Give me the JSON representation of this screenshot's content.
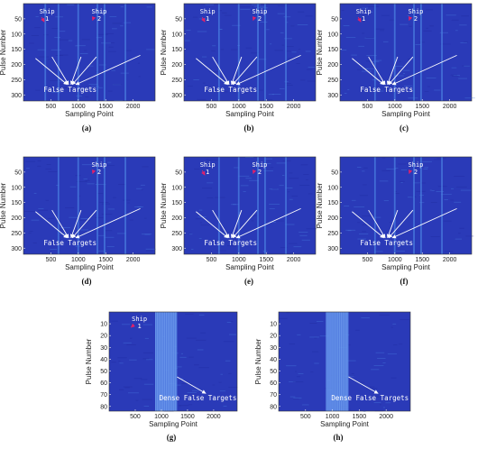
{
  "chart_data": [
    {
      "id": "a",
      "type": "heatmap",
      "caption": "(a)",
      "xlabel": "Sampling Point",
      "ylabel": "Pulse Number",
      "xlim": [
        0,
        2400
      ],
      "ylim": [
        0,
        320
      ],
      "xticks": [
        500,
        1000,
        1500,
        2000
      ],
      "yticks": [
        50,
        100,
        150,
        200,
        250,
        300
      ],
      "ships": [
        {
          "line1": "Ship",
          "line2": "1",
          "x": 430,
          "y": 18,
          "tx": 380,
          "ty": 60
        },
        {
          "line1": "Ship",
          "line2": "2",
          "x": 1380,
          "y": 18,
          "tx": 1260,
          "ty": 55
        }
      ],
      "false_label": "False Targets",
      "false_at": [
        850,
        290
      ],
      "false_from": [
        [
          220,
          180
        ],
        [
          520,
          175
        ],
        [
          1050,
          175
        ],
        [
          1330,
          175
        ],
        [
          2130,
          170
        ]
      ],
      "stripes": [
        400,
        640,
        1000,
        1350,
        1480,
        1860
      ]
    },
    {
      "id": "b",
      "type": "heatmap",
      "caption": "(b)",
      "xlabel": "Sampling Point",
      "ylabel": "Pulse Number",
      "xlim": [
        0,
        2400
      ],
      "ylim": [
        0,
        320
      ],
      "xticks": [
        500,
        1000,
        1500,
        2000
      ],
      "yticks": [
        50,
        100,
        150,
        200,
        250,
        300
      ],
      "ships": [
        {
          "line1": "Ship",
          "line2": "1",
          "x": 430,
          "y": 18,
          "tx": 380,
          "ty": 60
        },
        {
          "line1": "Ship",
          "line2": "2",
          "x": 1380,
          "y": 18,
          "tx": 1260,
          "ty": 55
        }
      ],
      "false_label": "False Targets",
      "false_at": [
        850,
        290
      ],
      "false_from": [
        [
          220,
          180
        ],
        [
          520,
          175
        ],
        [
          1050,
          175
        ],
        [
          1330,
          175
        ],
        [
          2130,
          170
        ]
      ],
      "stripes": [
        640,
        1000,
        1350,
        1480,
        1860
      ]
    },
    {
      "id": "c",
      "type": "heatmap",
      "caption": "(c)",
      "xlabel": "Sampling Point",
      "ylabel": "Pulse Number",
      "xlim": [
        0,
        2400
      ],
      "ylim": [
        0,
        320
      ],
      "xticks": [
        500,
        1000,
        1500,
        2000
      ],
      "yticks": [
        50,
        100,
        150,
        200,
        250,
        300
      ],
      "ships": [
        {
          "line1": "Ship",
          "line2": "1",
          "x": 430,
          "y": 18,
          "tx": 380,
          "ty": 60
        },
        {
          "line1": "Ship",
          "line2": "2",
          "x": 1380,
          "y": 18,
          "tx": 1260,
          "ty": 55
        }
      ],
      "false_label": "False Targets",
      "false_at": [
        850,
        290
      ],
      "false_from": [
        [
          220,
          180
        ],
        [
          520,
          175
        ],
        [
          1050,
          175
        ],
        [
          1330,
          175
        ],
        [
          2130,
          170
        ]
      ],
      "stripes": [
        640,
        1000,
        1350,
        1480,
        1860
      ]
    },
    {
      "id": "d",
      "type": "heatmap",
      "caption": "(d)",
      "xlabel": "Sampling Point",
      "ylabel": "Pulse Number",
      "xlim": [
        0,
        2400
      ],
      "ylim": [
        0,
        320
      ],
      "xticks": [
        500,
        1000,
        1500,
        2000
      ],
      "yticks": [
        50,
        100,
        150,
        200,
        250,
        300
      ],
      "ships": [
        {
          "line1": "Ship",
          "line2": "2",
          "x": 1380,
          "y": 18,
          "tx": 1260,
          "ty": 55
        }
      ],
      "false_label": "False Targets",
      "false_at": [
        850,
        290
      ],
      "false_from": [
        [
          220,
          180
        ],
        [
          520,
          175
        ],
        [
          1050,
          175
        ],
        [
          1330,
          175
        ],
        [
          2130,
          170
        ]
      ],
      "stripes": [
        640,
        1000,
        1350,
        1480,
        1860
      ]
    },
    {
      "id": "e",
      "type": "heatmap",
      "caption": "(e)",
      "xlabel": "Sampling Point",
      "ylabel": "Pulse Number",
      "xlim": [
        0,
        2400
      ],
      "ylim": [
        0,
        320
      ],
      "xticks": [
        500,
        1000,
        1500,
        2000
      ],
      "yticks": [
        50,
        100,
        150,
        200,
        250,
        300
      ],
      "ships": [
        {
          "line1": "Ship",
          "line2": "1",
          "x": 430,
          "y": 18,
          "tx": 380,
          "ty": 60
        },
        {
          "line1": "Ship",
          "line2": "2",
          "x": 1380,
          "y": 18,
          "tx": 1260,
          "ty": 55
        }
      ],
      "false_label": "False Targets",
      "false_at": [
        850,
        290
      ],
      "false_from": [
        [
          220,
          180
        ],
        [
          520,
          175
        ],
        [
          1050,
          175
        ],
        [
          1330,
          175
        ],
        [
          2130,
          170
        ]
      ],
      "stripes": [
        640,
        1000,
        1350,
        1480,
        1860
      ]
    },
    {
      "id": "f",
      "type": "heatmap",
      "caption": "(f)",
      "xlabel": "Sampling Point",
      "ylabel": "Pulse Number",
      "xlim": [
        0,
        2400
      ],
      "ylim": [
        0,
        320
      ],
      "xticks": [
        500,
        1000,
        1500,
        2000
      ],
      "yticks": [
        50,
        100,
        150,
        200,
        250,
        300
      ],
      "ships": [
        {
          "line1": "Ship",
          "line2": "2",
          "x": 1380,
          "y": 18,
          "tx": 1260,
          "ty": 55
        }
      ],
      "false_label": "False Targets",
      "false_at": [
        850,
        290
      ],
      "false_from": [
        [
          220,
          180
        ],
        [
          520,
          175
        ],
        [
          1050,
          175
        ],
        [
          1330,
          175
        ],
        [
          2130,
          170
        ]
      ],
      "stripes": [
        640,
        1000,
        1350,
        1480,
        1860
      ]
    },
    {
      "id": "g",
      "type": "heatmap",
      "caption": "(g)",
      "xlabel": "Sampling Point",
      "ylabel": "Pulse Number",
      "xlim": [
        0,
        2450
      ],
      "ylim": [
        0,
        84
      ],
      "xticks": [
        500,
        1000,
        1500,
        2000
      ],
      "yticks": [
        10,
        20,
        30,
        40,
        50,
        60,
        70,
        80
      ],
      "ships": [
        {
          "line1": "Ship",
          "line2": "1",
          "x": 580,
          "y": 4,
          "tx": 420,
          "ty": 13
        }
      ],
      "dense_label": "Dense False Targets",
      "dense_at": [
        1700,
        75
      ],
      "dense_from": [
        1300,
        55
      ],
      "dense_to": [
        1850,
        69
      ],
      "band": [
        880,
        1300
      ]
    },
    {
      "id": "h",
      "type": "heatmap",
      "caption": "(h)",
      "xlabel": "Sampling Point",
      "ylabel": "Pulse Number",
      "xlim": [
        0,
        2450
      ],
      "ylim": [
        0,
        84
      ],
      "xticks": [
        500,
        1000,
        1500,
        2000
      ],
      "yticks": [
        10,
        20,
        30,
        40,
        50,
        60,
        70,
        80
      ],
      "ships": [],
      "dense_label": "Dense False Targets",
      "dense_at": [
        1700,
        75
      ],
      "dense_from": [
        1300,
        55
      ],
      "dense_to": [
        1850,
        69
      ],
      "band": [
        880,
        1300
      ]
    }
  ],
  "colors": {
    "background": "#2a3ab8",
    "noise_dark": "#1e2aa0",
    "stripe": "#4a7fe0",
    "band": "#5c8ce8",
    "annotation": "#ffffff",
    "ship_arrow": "#e0206a"
  }
}
